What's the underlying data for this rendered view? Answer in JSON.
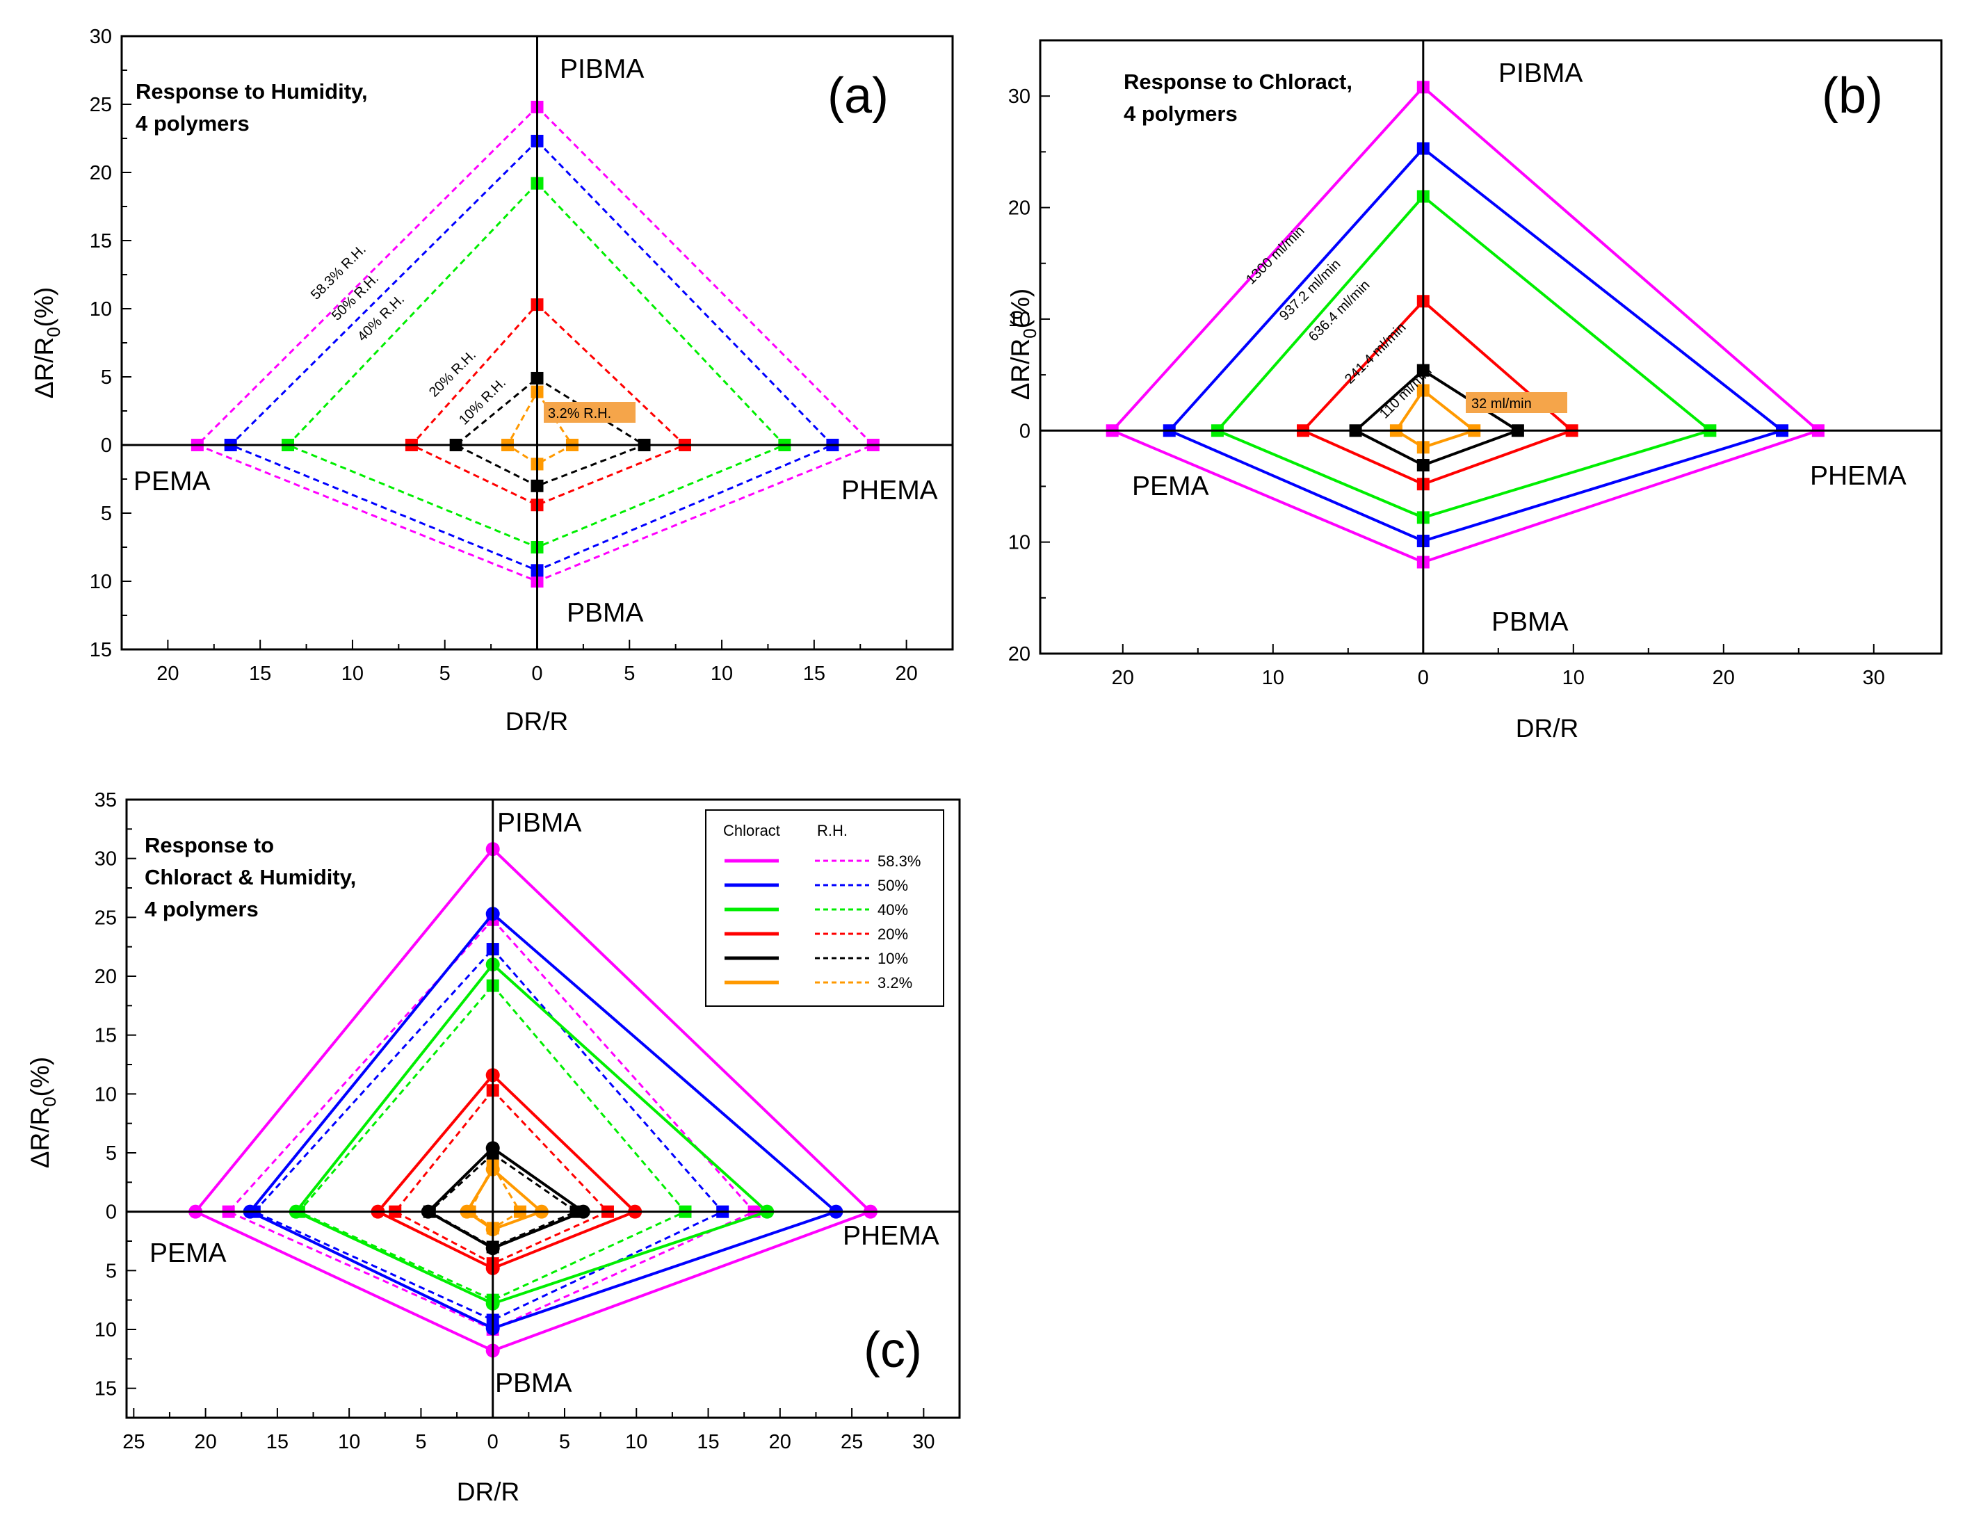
{
  "chart_data": [
    {
      "id": "a",
      "type": "line",
      "panel_tag": "(a)",
      "title_lines": [
        "Response to Humidity,",
        "4 polymers"
      ],
      "xlabel": "DR/R",
      "ylabel_main": "ΔR/R",
      "ylabel_sub": "0",
      "ylabel_unit": "(%)",
      "x_ticks": [
        {
          "v": -20,
          "t": "20"
        },
        {
          "v": -15,
          "t": "15"
        },
        {
          "v": -10,
          "t": "10"
        },
        {
          "v": -5,
          "t": "5"
        },
        {
          "v": 0,
          "t": "0"
        },
        {
          "v": 5,
          "t": "5"
        },
        {
          "v": 10,
          "t": "10"
        },
        {
          "v": 15,
          "t": "15"
        },
        {
          "v": 20,
          "t": "20"
        }
      ],
      "y_ticks": [
        {
          "v": 30,
          "t": "30"
        },
        {
          "v": 25,
          "t": "25"
        },
        {
          "v": 20,
          "t": "20"
        },
        {
          "v": 15,
          "t": "15"
        },
        {
          "v": 10,
          "t": "10"
        },
        {
          "v": 5,
          "t": "5"
        },
        {
          "v": 0,
          "t": "0"
        },
        {
          "v": -5,
          "t": "5"
        },
        {
          "v": -10,
          "t": "10"
        },
        {
          "v": -15,
          "t": "15"
        }
      ],
      "xlim": [
        -22.5,
        22.5
      ],
      "ylim": [
        -15,
        30
      ],
      "polymer_labels": {
        "top": "PIBMA",
        "left": "PEMA",
        "right": "PHEMA",
        "bottom": "PBMA"
      },
      "series": [
        {
          "name": "58.3% R.H.",
          "color": "#ff00ff",
          "style": "dashed",
          "marker": "square",
          "PIBMA": 24.8,
          "PHEMA": 18.2,
          "PBMA": 10.0,
          "PEMA": 18.4
        },
        {
          "name": "50% R.H.",
          "color": "#0000ff",
          "style": "dashed",
          "marker": "square",
          "PIBMA": 22.3,
          "PHEMA": 16.0,
          "PBMA": 9.2,
          "PEMA": 16.6
        },
        {
          "name": "40% R.H.",
          "color": "#00ee00",
          "style": "dashed",
          "marker": "square",
          "PIBMA": 19.2,
          "PHEMA": 13.4,
          "PBMA": 7.5,
          "PEMA": 13.5
        },
        {
          "name": "20% R.H.",
          "color": "#ff0000",
          "style": "dashed",
          "marker": "square",
          "PIBMA": 10.3,
          "PHEMA": 8.0,
          "PBMA": 4.4,
          "PEMA": 6.8
        },
        {
          "name": "10% R.H.",
          "color": "#000000",
          "style": "dashed",
          "marker": "square",
          "PIBMA": 4.9,
          "PHEMA": 5.8,
          "PBMA": 3.0,
          "PEMA": 4.4
        },
        {
          "name": "3.2% R.H.",
          "color": "#ff9900",
          "style": "dashed",
          "marker": "square",
          "PIBMA": 3.9,
          "PHEMA": 1.9,
          "PBMA": 1.4,
          "PEMA": 1.6
        }
      ]
    },
    {
      "id": "b",
      "type": "line",
      "panel_tag": "(b)",
      "title_lines": [
        "Response to Chloract,",
        "4 polymers"
      ],
      "xlabel": "DR/R",
      "ylabel_main": "ΔR/R",
      "ylabel_sub": "0",
      "ylabel_unit": "(%)",
      "x_ticks": [
        {
          "v": -20,
          "t": "20"
        },
        {
          "v": -10,
          "t": "10"
        },
        {
          "v": 0,
          "t": "0"
        },
        {
          "v": 10,
          "t": "10"
        },
        {
          "v": 20,
          "t": "20"
        },
        {
          "v": 30,
          "t": "30"
        }
      ],
      "y_ticks": [
        {
          "v": 30,
          "t": "30"
        },
        {
          "v": 20,
          "t": "20"
        },
        {
          "v": 10,
          "t": "10"
        },
        {
          "v": 0,
          "t": "0"
        },
        {
          "v": -10,
          "t": "10"
        },
        {
          "v": -20,
          "t": "20"
        }
      ],
      "xlim": [
        -25.5,
        34.5
      ],
      "ylim": [
        -20,
        35
      ],
      "polymer_labels": {
        "top": "PIBMA",
        "left": "PEMA",
        "right": "PHEMA",
        "bottom": "PBMA"
      },
      "series": [
        {
          "name": "1300 ml/min",
          "color": "#ff00ff",
          "style": "solid",
          "marker": "square",
          "PIBMA": 30.8,
          "PHEMA": 26.3,
          "PBMA": 11.8,
          "PEMA": 20.7
        },
        {
          "name": "937.2 ml/min",
          "color": "#0000ff",
          "style": "solid",
          "marker": "square",
          "PIBMA": 25.3,
          "PHEMA": 23.9,
          "PBMA": 9.9,
          "PEMA": 16.9
        },
        {
          "name": "636.4 ml/min",
          "color": "#00ee00",
          "style": "solid",
          "marker": "square",
          "PIBMA": 21.0,
          "PHEMA": 19.1,
          "PBMA": 7.8,
          "PEMA": 13.7
        },
        {
          "name": "241.4 ml/min",
          "color": "#ff0000",
          "style": "solid",
          "marker": "square",
          "PIBMA": 11.6,
          "PHEMA": 9.9,
          "PBMA": 4.8,
          "PEMA": 8.0
        },
        {
          "name": "110 ml/min",
          "color": "#000000",
          "style": "solid",
          "marker": "square",
          "PIBMA": 5.4,
          "PHEMA": 6.3,
          "PBMA": 3.1,
          "PEMA": 4.5
        },
        {
          "name": "32 ml/min",
          "color": "#ff9900",
          "style": "solid",
          "marker": "square",
          "PIBMA": 3.6,
          "PHEMA": 3.4,
          "PBMA": 1.5,
          "PEMA": 1.8
        }
      ]
    },
    {
      "id": "c",
      "type": "line",
      "panel_tag": "(c)",
      "title_lines": [
        "Response to",
        "Chloract & Humidity,",
        "4 polymers"
      ],
      "xlabel": "DR/R",
      "ylabel_main": "ΔR/R",
      "ylabel_sub": "0",
      "ylabel_unit": "(%)",
      "x_ticks": [
        {
          "v": -25,
          "t": "25"
        },
        {
          "v": -20,
          "t": "20"
        },
        {
          "v": -15,
          "t": "15"
        },
        {
          "v": -10,
          "t": "10"
        },
        {
          "v": -5,
          "t": "5"
        },
        {
          "v": 0,
          "t": "0"
        },
        {
          "v": 5,
          "t": "5"
        },
        {
          "v": 10,
          "t": "10"
        },
        {
          "v": 15,
          "t": "15"
        },
        {
          "v": 20,
          "t": "20"
        },
        {
          "v": 25,
          "t": "25"
        },
        {
          "v": 30,
          "t": "30"
        }
      ],
      "y_ticks": [
        {
          "v": 35,
          "t": "35"
        },
        {
          "v": 30,
          "t": "30"
        },
        {
          "v": 25,
          "t": "25"
        },
        {
          "v": 20,
          "t": "20"
        },
        {
          "v": 15,
          "t": "15"
        },
        {
          "v": 10,
          "t": "10"
        },
        {
          "v": 5,
          "t": "5"
        },
        {
          "v": 0,
          "t": "0"
        },
        {
          "v": -5,
          "t": "5"
        },
        {
          "v": -10,
          "t": "10"
        },
        {
          "v": -15,
          "t": "15"
        }
      ],
      "xlim": [
        -25.5,
        32.5
      ],
      "ylim": [
        -17.5,
        35
      ],
      "polymer_labels": {
        "top": "PIBMA",
        "left": "PEMA",
        "right": "PHEMA",
        "bottom": "PBMA"
      },
      "legend": {
        "header_solid": "Chloract",
        "header_dashed": "R.H.",
        "rows": [
          {
            "label": "58.3%",
            "color": "#ff00ff"
          },
          {
            "label": "50%",
            "color": "#0000ff"
          },
          {
            "label": "40%",
            "color": "#00ee00"
          },
          {
            "label": "20%",
            "color": "#ff0000"
          },
          {
            "label": "10%",
            "color": "#000000"
          },
          {
            "label": "3.2%",
            "color": "#ff9900"
          }
        ]
      },
      "series": [
        {
          "name": "Chloract 58.3%",
          "color": "#ff00ff",
          "style": "solid",
          "marker": "circle",
          "PIBMA": 30.8,
          "PHEMA": 26.3,
          "PBMA": 11.8,
          "PEMA": 20.7
        },
        {
          "name": "Chloract 50%",
          "color": "#0000ff",
          "style": "solid",
          "marker": "circle",
          "PIBMA": 25.3,
          "PHEMA": 23.9,
          "PBMA": 9.9,
          "PEMA": 16.9
        },
        {
          "name": "Chloract 40%",
          "color": "#00ee00",
          "style": "solid",
          "marker": "circle",
          "PIBMA": 21.0,
          "PHEMA": 19.1,
          "PBMA": 7.8,
          "PEMA": 13.7
        },
        {
          "name": "Chloract 20%",
          "color": "#ff0000",
          "style": "solid",
          "marker": "circle",
          "PIBMA": 11.6,
          "PHEMA": 9.9,
          "PBMA": 4.8,
          "PEMA": 8.0
        },
        {
          "name": "Chloract 10%",
          "color": "#000000",
          "style": "solid",
          "marker": "circle",
          "PIBMA": 5.4,
          "PHEMA": 6.3,
          "PBMA": 3.1,
          "PEMA": 4.5
        },
        {
          "name": "Chloract 3.2%",
          "color": "#ff9900",
          "style": "solid",
          "marker": "circle",
          "PIBMA": 3.6,
          "PHEMA": 3.4,
          "PBMA": 1.5,
          "PEMA": 1.8
        },
        {
          "name": "R.H. 58.3%",
          "color": "#ff00ff",
          "style": "dashed",
          "marker": "square",
          "PIBMA": 24.8,
          "PHEMA": 18.2,
          "PBMA": 10.0,
          "PEMA": 18.4
        },
        {
          "name": "R.H. 50%",
          "color": "#0000ff",
          "style": "dashed",
          "marker": "square",
          "PIBMA": 22.3,
          "PHEMA": 16.0,
          "PBMA": 9.2,
          "PEMA": 16.6
        },
        {
          "name": "R.H. 40%",
          "color": "#00ee00",
          "style": "dashed",
          "marker": "square",
          "PIBMA": 19.2,
          "PHEMA": 13.4,
          "PBMA": 7.5,
          "PEMA": 13.5
        },
        {
          "name": "R.H. 20%",
          "color": "#ff0000",
          "style": "dashed",
          "marker": "square",
          "PIBMA": 10.3,
          "PHEMA": 8.0,
          "PBMA": 4.4,
          "PEMA": 6.8
        },
        {
          "name": "R.H. 10%",
          "color": "#000000",
          "style": "dashed",
          "marker": "square",
          "PIBMA": 4.9,
          "PHEMA": 5.8,
          "PBMA": 3.0,
          "PEMA": 4.4
        },
        {
          "name": "R.H. 3.2%",
          "color": "#ff9900",
          "style": "dashed",
          "marker": "square",
          "PIBMA": 3.9,
          "PHEMA": 1.9,
          "PBMA": 1.4,
          "PEMA": 1.6
        }
      ]
    }
  ]
}
